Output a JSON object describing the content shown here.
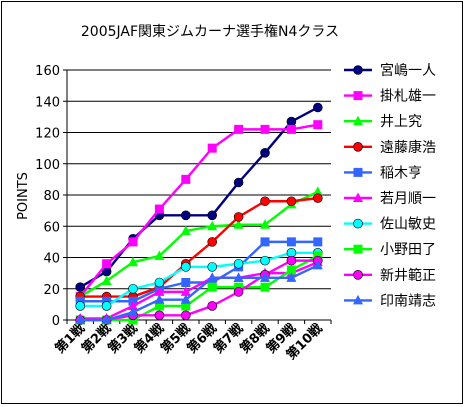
{
  "chart_data": {
    "type": "line",
    "title": "2005JAF関東ジムカーナ選手権N4クラス",
    "ylabel": "POINTS",
    "xlabel": "",
    "ylim": [
      0,
      160
    ],
    "yticks": [
      0,
      20,
      40,
      60,
      80,
      100,
      120,
      140,
      160
    ],
    "grid": true,
    "legend_position": "right",
    "categories": [
      "第1戦",
      "第2戦",
      "第3戦",
      "第4戦",
      "第5戦",
      "第6戦",
      "第7戦",
      "第8戦",
      "第9戦",
      "第10戦"
    ],
    "series": [
      {
        "name": "宮嶋一人",
        "color": "#000080",
        "marker": "circle",
        "values": [
          21,
          31,
          52,
          67,
          67,
          67,
          88,
          107,
          127,
          136
        ]
      },
      {
        "name": "掛札雄一",
        "color": "#FF00FF",
        "marker": "square",
        "values": [
          15,
          36,
          50,
          71,
          90,
          110,
          122,
          122,
          122,
          125
        ]
      },
      {
        "name": "井上究",
        "color": "#00FF00",
        "marker": "triangle",
        "values": [
          15,
          25,
          37,
          41,
          57,
          60,
          61,
          61,
          74,
          82
        ]
      },
      {
        "name": "遠藤康浩",
        "color": "#FF0000",
        "marker": "circle",
        "values": [
          15,
          15,
          15,
          21,
          36,
          50,
          66,
          76,
          76,
          78
        ]
      },
      {
        "name": "稲木亨",
        "color": "#3366FF",
        "marker": "square",
        "values": [
          12,
          12,
          12,
          20,
          24,
          24,
          34,
          50,
          50,
          50
        ]
      },
      {
        "name": "若月順一",
        "color": "#FF00FF",
        "marker": "triangle",
        "values": [
          1,
          1,
          9,
          18,
          18,
          27,
          27,
          30,
          30,
          37
        ]
      },
      {
        "name": "佐山敏史",
        "color": "#00FFFF",
        "marker": "circle",
        "values": [
          9,
          9,
          20,
          24,
          34,
          34,
          36,
          38,
          43,
          43
        ]
      },
      {
        "name": "小野田了",
        "color": "#00FF00",
        "marker": "square",
        "values": [
          0,
          0,
          0,
          9,
          9,
          21,
          21,
          21,
          32,
          41
        ]
      },
      {
        "name": "新井範正",
        "color": "#FF00FF",
        "marker": "circle",
        "values": [
          0,
          0,
          3,
          3,
          3,
          9,
          18,
          29,
          38,
          38
        ]
      },
      {
        "name": "印南靖志",
        "color": "#3366FF",
        "marker": "triangle",
        "values": [
          0,
          0,
          5,
          13,
          13,
          27,
          27,
          27,
          27,
          35
        ]
      }
    ]
  }
}
